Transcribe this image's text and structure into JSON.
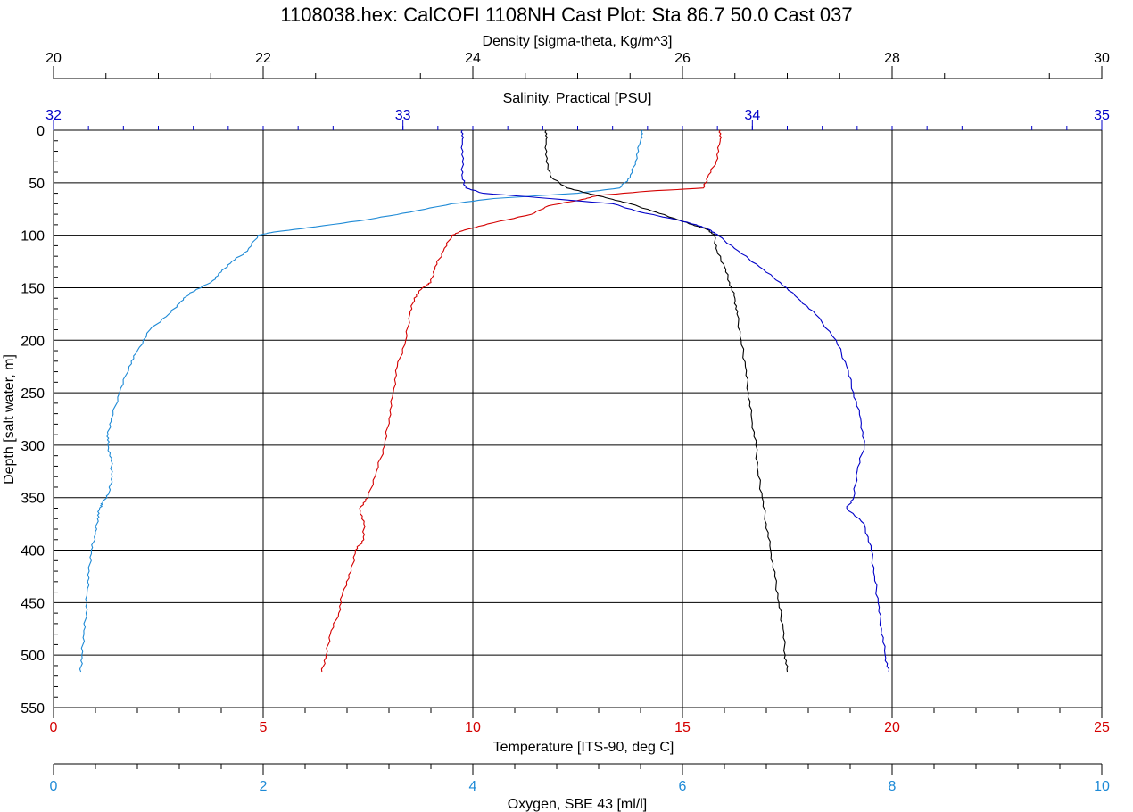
{
  "colors": {
    "density": "#000000",
    "salinity": "#0000c8",
    "temperature": "#d40000",
    "oxygen": "#1e8ad6",
    "axis": "#000000"
  },
  "chart_data": {
    "type": "line",
    "title": "1108038.hex: CalCOFI 1108NH Cast Plot: Sta 86.7 50.0  Cast 037",
    "y_axis": {
      "label": "Depth [salt water, m]",
      "range": [
        0,
        550
      ],
      "ticks": [
        "0",
        "50",
        "100",
        "150",
        "200",
        "250",
        "300",
        "350",
        "400",
        "450",
        "500",
        "550"
      ],
      "inverted": true
    },
    "x_axes": [
      {
        "id": "density",
        "label": "Density [sigma-theta, Kg/m^3]",
        "position": "top",
        "range": [
          20,
          30
        ],
        "ticks": [
          "20",
          "22",
          "24",
          "26",
          "28",
          "30"
        ]
      },
      {
        "id": "salinity",
        "label": "Salinity, Practical [PSU]",
        "position": "top-inner",
        "range": [
          32,
          35
        ],
        "ticks": [
          "32",
          "33",
          "34",
          "35"
        ]
      },
      {
        "id": "temperature",
        "label": "Temperature [ITS-90, deg C]",
        "position": "bottom",
        "range": [
          0,
          25
        ],
        "ticks": [
          "0",
          "5",
          "10",
          "15",
          "20",
          "25"
        ]
      },
      {
        "id": "oxygen",
        "label": "Oxygen, SBE 43 [ml/l]",
        "position": "bottom-outer",
        "range": [
          0,
          10
        ],
        "ticks": [
          "0",
          "2",
          "4",
          "6",
          "8",
          "10"
        ]
      }
    ],
    "grid": true,
    "series": [
      {
        "axis": "temperature",
        "depth": [
          0,
          10,
          30,
          45,
          55,
          58,
          62,
          66,
          72,
          80,
          88,
          95,
          100,
          115,
          130,
          145,
          150,
          160,
          175,
          200,
          225,
          250,
          275,
          300,
          325,
          350,
          360,
          375,
          390,
          400,
          420,
          440,
          460,
          480,
          500,
          516
        ],
        "values": [
          15.9,
          15.9,
          15.8,
          15.6,
          15.5,
          14.2,
          13.0,
          12.6,
          11.8,
          11.4,
          10.5,
          9.8,
          9.5,
          9.3,
          9.1,
          9.0,
          8.8,
          8.6,
          8.5,
          8.4,
          8.2,
          8.1,
          8.0,
          7.9,
          7.7,
          7.5,
          7.3,
          7.4,
          7.4,
          7.2,
          7.1,
          6.9,
          6.8,
          6.6,
          6.5,
          6.4
        ]
      },
      {
        "axis": "oxygen",
        "depth": [
          0,
          10,
          30,
          45,
          55,
          60,
          65,
          70,
          78,
          85,
          92,
          97,
          100,
          115,
          125,
          135,
          145,
          155,
          165,
          175,
          190,
          210,
          225,
          250,
          275,
          290,
          300,
          315,
          330,
          345,
          355,
          360,
          370,
          385,
          400,
          420,
          440,
          460,
          480,
          500,
          516
        ],
        "values": [
          5.62,
          5.6,
          5.55,
          5.5,
          5.4,
          5.0,
          4.2,
          3.8,
          3.4,
          3.0,
          2.5,
          2.1,
          1.95,
          1.85,
          1.7,
          1.6,
          1.5,
          1.3,
          1.2,
          1.1,
          0.92,
          0.8,
          0.72,
          0.63,
          0.55,
          0.52,
          0.52,
          0.55,
          0.56,
          0.53,
          0.47,
          0.44,
          0.42,
          0.4,
          0.36,
          0.34,
          0.32,
          0.31,
          0.29,
          0.27,
          0.26
        ]
      },
      {
        "axis": "density",
        "depth": [
          0,
          10,
          30,
          45,
          55,
          60,
          65,
          70,
          78,
          85,
          90,
          95,
          100,
          115,
          130,
          145,
          160,
          175,
          200,
          225,
          250,
          275,
          300,
          325,
          350,
          375,
          400,
          425,
          450,
          475,
          500,
          516
        ],
        "values": [
          24.7,
          24.7,
          24.7,
          24.75,
          24.9,
          25.1,
          25.3,
          25.5,
          25.75,
          25.95,
          26.1,
          26.25,
          26.3,
          26.33,
          26.4,
          26.45,
          26.5,
          26.52,
          26.56,
          26.6,
          26.63,
          26.66,
          26.7,
          26.72,
          26.76,
          26.8,
          26.84,
          26.88,
          26.92,
          26.96,
          26.98,
          27.0
        ]
      },
      {
        "axis": "salinity",
        "depth": [
          0,
          10,
          30,
          45,
          55,
          60,
          65,
          70,
          78,
          85,
          90,
          95,
          100,
          115,
          130,
          145,
          160,
          175,
          200,
          225,
          250,
          275,
          300,
          325,
          350,
          360,
          375,
          400,
          425,
          450,
          475,
          500,
          516
        ],
        "values": [
          33.17,
          33.17,
          33.17,
          33.17,
          33.18,
          33.23,
          33.42,
          33.6,
          33.68,
          33.78,
          33.84,
          33.88,
          33.9,
          33.96,
          34.02,
          34.08,
          34.13,
          34.18,
          34.24,
          34.27,
          34.29,
          34.31,
          34.32,
          34.3,
          34.29,
          34.27,
          34.32,
          34.34,
          34.35,
          34.36,
          34.37,
          34.38,
          34.39
        ]
      }
    ]
  }
}
